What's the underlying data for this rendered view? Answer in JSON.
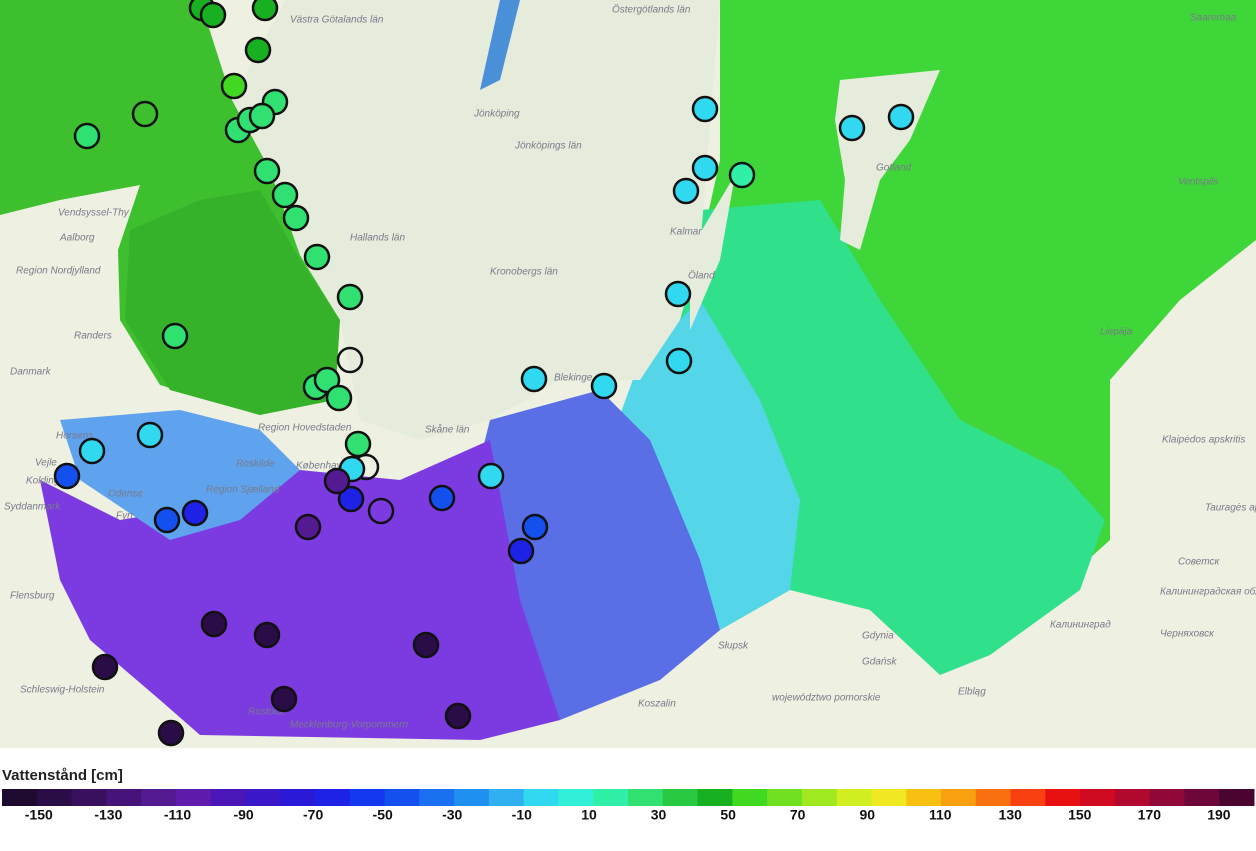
{
  "map": {
    "labels": [
      "Västra Götalands län",
      "Östergötlands län",
      "Jönköping",
      "Jönköpings län",
      "Hallands län",
      "Kronobergs län",
      "Kalmar",
      "Öland",
      "Blekinge",
      "Skåne län",
      "Gotland",
      "Saaremaa",
      "Ventspils",
      "Liepāja",
      "Klaipėdos apskritis",
      "Tauragės apskritis",
      "Советск",
      "Калининградская область",
      "Калининград",
      "Черняховск",
      "Gdynia",
      "Gdańsk",
      "Elbląg",
      "Słupsk",
      "Koszalin",
      "województwo pomorskie",
      "Rostock",
      "Mecklenburg-Vorpommern",
      "Schleswig-Holstein",
      "Flensburg",
      "Vendsyssel-Thy",
      "Aalborg",
      "Region Nordjylland",
      "Randers",
      "Danmark",
      "Horsens",
      "Vejle",
      "Kolding",
      "Syddanmark",
      "Odense",
      "Fyn",
      "Region Sjælland",
      "Roskilde",
      "København",
      "Region Hovedstaden"
    ],
    "stations": [
      25,
      45,
      45,
      45,
      45,
      55,
      null,
      25,
      25,
      25,
      25,
      25,
      25,
      25,
      25,
      25,
      25,
      25,
      25,
      25,
      25,
      null,
      null,
      null,
      -5,
      -5,
      -5,
      -5,
      -5,
      -5,
      -5,
      -5,
      -5,
      -5,
      -5,
      -5,
      -5,
      15,
      -45,
      -45,
      -45,
      -45,
      -65,
      -65,
      -65,
      -115,
      -115,
      -145,
      -145,
      -145,
      -145,
      -145,
      -145,
      -145
    ]
  },
  "legend": {
    "title": "Vattenstånd [cm]",
    "lim": [
      -160,
      200
    ],
    "colors": [
      "#1e0a2e",
      "#2a0c46",
      "#38105e",
      "#461478",
      "#541a92",
      "#5f1cac",
      "#4a16b8",
      "#3a18c8",
      "#2a1ad8",
      "#1e22e6",
      "#1438f0",
      "#1450ee",
      "#1a70f0",
      "#2090f0",
      "#30b0f0",
      "#30d8f0",
      "#30f0d8",
      "#30f0a8",
      "#30e070",
      "#28c840",
      "#18b020",
      "#40d820",
      "#70e020",
      "#a0e820",
      "#d0ee20",
      "#f0e820",
      "#f8c010",
      "#f8a010",
      "#f87010",
      "#f84010",
      "#e81010",
      "#d00a20",
      "#b0082e",
      "#900838",
      "#6e063a",
      "#4a0430"
    ],
    "ticks": [
      -150,
      -130,
      -110,
      -90,
      -70,
      -50,
      -30,
      -10,
      10,
      30,
      50,
      70,
      90,
      110,
      130,
      150,
      170,
      190
    ]
  }
}
